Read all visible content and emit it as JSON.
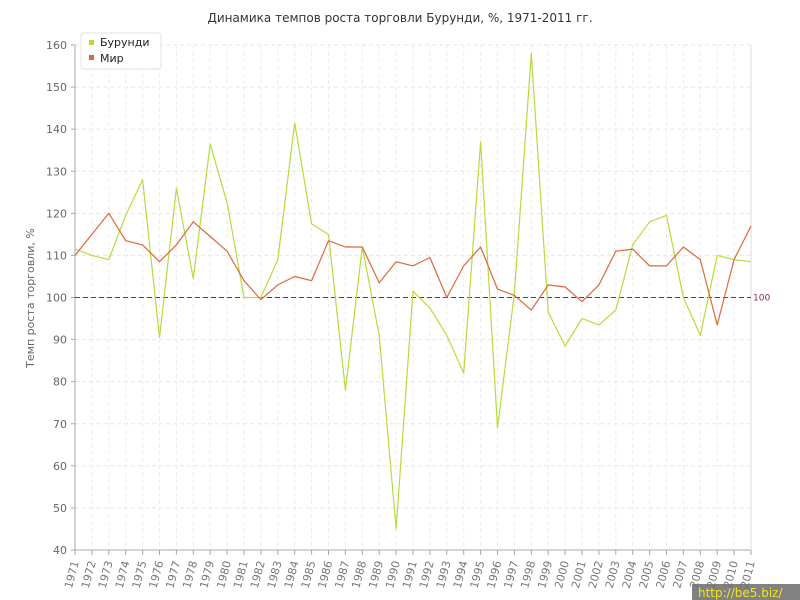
{
  "chart_data": {
    "type": "line",
    "title": "Динамика темпов роста торговли Бурунди, %, 1971-2011 гг.",
    "xlabel": "",
    "ylabel": "Темп роста торговли, %",
    "ylim": [
      40,
      160
    ],
    "yticks": [
      40,
      50,
      60,
      70,
      80,
      90,
      100,
      110,
      120,
      130,
      140,
      150,
      160
    ],
    "grid": true,
    "legend_position": "top-left",
    "categories": [
      "1971",
      "1972",
      "1973",
      "1974",
      "1975",
      "1976",
      "1977",
      "1978",
      "1979",
      "1980",
      "1981",
      "1982",
      "1983",
      "1984",
      "1985",
      "1986",
      "1987",
      "1988",
      "1989",
      "1990",
      "1991",
      "1992",
      "1993",
      "1994",
      "1995",
      "1996",
      "1997",
      "1998",
      "1999",
      "2000",
      "2001",
      "2002",
      "2003",
      "2004",
      "2005",
      "2006",
      "2007",
      "2008",
      "2009",
      "2010",
      "2011"
    ],
    "series": [
      {
        "name": "Бурунди",
        "color": "#b5dc3c",
        "values": [
          111.5,
          110.0,
          109.0,
          119.5,
          128.0,
          90.5,
          126.0,
          104.5,
          136.5,
          122.5,
          100.0,
          100.0,
          109.0,
          141.5,
          117.5,
          115.0,
          78.0,
          112.0,
          91.0,
          45.0,
          101.5,
          97.5,
          91.0,
          82.0,
          137.0,
          69.0,
          101.0,
          158.0,
          96.5,
          88.5,
          95.0,
          93.5,
          97.0,
          112.5,
          118.0,
          119.5,
          100.0,
          91.0,
          110.0,
          109.0,
          108.5
        ]
      },
      {
        "name": "Мир",
        "color": "#e0663a",
        "values": [
          110.0,
          115.0,
          120.0,
          113.5,
          112.5,
          108.5,
          112.5,
          118.0,
          114.5,
          111.0,
          104.0,
          99.5,
          103.0,
          105.0,
          104.0,
          113.5,
          112.0,
          112.0,
          103.5,
          108.5,
          107.5,
          109.5,
          100.0,
          107.5,
          112.0,
          102.0,
          100.5,
          97.0,
          103.0,
          102.5,
          99.0,
          103.0,
          111.0,
          111.5,
          107.5,
          107.5,
          112.0,
          109.0,
          93.5,
          109.0,
          117.0
        ]
      }
    ],
    "reference_line": {
      "value": 100,
      "label": "100",
      "color": "#8b2b3a",
      "style": "dashed"
    }
  },
  "watermark": "http://be5.biz/"
}
